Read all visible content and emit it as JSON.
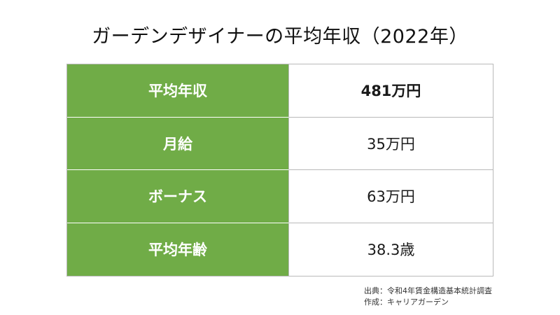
{
  "title": "ガーデンデザイナーの平均年収（2022年）",
  "table": {
    "rows": [
      {
        "label": "平均年収",
        "value": "481万円"
      },
      {
        "label": "月給",
        "value": "35万円"
      },
      {
        "label": "ボーナス",
        "value": "63万円"
      },
      {
        "label": "平均年齢",
        "value": "38.3歳"
      }
    ]
  },
  "footer": {
    "source": "出典：令和4年賃金構造基本統計調査",
    "author": "作成：キャリアガーデン"
  },
  "colors": {
    "label_background": "#70ac47",
    "label_text": "#ffffff",
    "border": "#b9b9b9"
  }
}
